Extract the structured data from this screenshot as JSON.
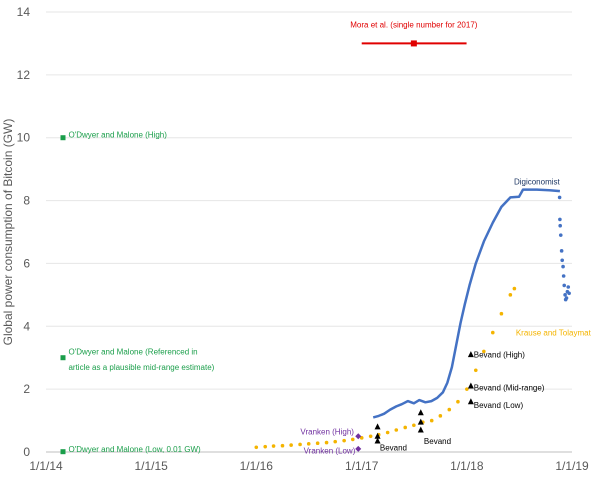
{
  "chart_data": {
    "type": "scatter",
    "ylabel": "Global power consumption of Bitcoin (GW)",
    "ylim": [
      0,
      14
    ],
    "yticks": [
      "0",
      "2",
      "4",
      "6",
      "8",
      "10",
      "12",
      "14"
    ],
    "xlim": [
      "2014-01-01",
      "2019-01-01"
    ],
    "xticks": [
      "1/1/14",
      "1/1/15",
      "1/1/16",
      "1/1/17",
      "1/1/18",
      "1/1/19"
    ],
    "series": [
      {
        "name": "Digiconomist",
        "color": "#4472c4",
        "style": "line",
        "points": [
          [
            "2017-02-10",
            1.1
          ],
          [
            "2017-03-01",
            1.15
          ],
          [
            "2017-03-20",
            1.22
          ],
          [
            "2017-04-10",
            1.35
          ],
          [
            "2017-05-01",
            1.45
          ],
          [
            "2017-05-20",
            1.52
          ],
          [
            "2017-06-10",
            1.62
          ],
          [
            "2017-07-01",
            1.55
          ],
          [
            "2017-07-20",
            1.65
          ],
          [
            "2017-08-10",
            1.58
          ],
          [
            "2017-08-31",
            1.62
          ],
          [
            "2017-09-20",
            1.72
          ],
          [
            "2017-10-10",
            1.9
          ],
          [
            "2017-10-25",
            2.2
          ],
          [
            "2017-11-10",
            2.7
          ],
          [
            "2017-11-25",
            3.4
          ],
          [
            "2017-12-10",
            4.1
          ],
          [
            "2017-12-25",
            4.7
          ],
          [
            "2018-01-10",
            5.3
          ],
          [
            "2018-02-01",
            6.0
          ],
          [
            "2018-03-01",
            6.7
          ],
          [
            "2018-04-01",
            7.3
          ],
          [
            "2018-05-01",
            7.8
          ],
          [
            "2018-06-01",
            8.1
          ],
          [
            "2018-07-01",
            8.12
          ],
          [
            "2018-07-15",
            8.35
          ],
          [
            "2018-09-01",
            8.35
          ],
          [
            "2018-10-15",
            8.33
          ],
          [
            "2018-11-20",
            8.3
          ]
        ]
      },
      {
        "name": "Digiconomist (scatter tail)",
        "color": "#4472c4",
        "style": "dots",
        "points": [
          [
            "2018-11-20",
            7.4
          ],
          [
            "2018-11-21",
            7.2
          ],
          [
            "2018-11-23",
            6.9
          ],
          [
            "2018-11-26",
            6.4
          ],
          [
            "2018-11-28",
            6.1
          ],
          [
            "2018-12-01",
            5.9
          ],
          [
            "2018-12-03",
            5.6
          ],
          [
            "2018-12-05",
            5.3
          ],
          [
            "2018-12-08",
            5.0
          ],
          [
            "2018-12-10",
            4.85
          ],
          [
            "2018-12-13",
            4.9
          ],
          [
            "2018-12-16",
            5.1
          ],
          [
            "2018-12-19",
            5.25
          ],
          [
            "2018-12-22",
            5.05
          ],
          [
            "2018-11-19",
            8.1
          ]
        ]
      },
      {
        "name": "Krause and Tolaymat",
        "color": "#f4b400",
        "style": "dots",
        "points": [
          [
            "2016-01-01",
            0.15
          ],
          [
            "2016-02-01",
            0.17
          ],
          [
            "2016-03-01",
            0.19
          ],
          [
            "2016-04-01",
            0.2
          ],
          [
            "2016-05-01",
            0.22
          ],
          [
            "2016-06-01",
            0.24
          ],
          [
            "2016-07-01",
            0.26
          ],
          [
            "2016-08-01",
            0.28
          ],
          [
            "2016-09-01",
            0.3
          ],
          [
            "2016-10-01",
            0.33
          ],
          [
            "2016-11-01",
            0.36
          ],
          [
            "2016-12-01",
            0.4
          ],
          [
            "2017-01-01",
            0.45
          ],
          [
            "2017-02-01",
            0.5
          ],
          [
            "2017-03-01",
            0.55
          ],
          [
            "2017-04-01",
            0.62
          ],
          [
            "2017-05-01",
            0.7
          ],
          [
            "2017-06-01",
            0.78
          ],
          [
            "2017-07-01",
            0.85
          ],
          [
            "2017-08-01",
            0.95
          ],
          [
            "2017-09-01",
            1.0
          ],
          [
            "2017-10-01",
            1.15
          ],
          [
            "2017-11-01",
            1.35
          ],
          [
            "2017-12-01",
            1.6
          ],
          [
            "2018-01-01",
            2.0
          ],
          [
            "2018-02-01",
            2.6
          ],
          [
            "2018-03-01",
            3.2
          ],
          [
            "2018-04-01",
            3.8
          ],
          [
            "2018-05-01",
            4.4
          ],
          [
            "2018-06-01",
            5.0
          ],
          [
            "2018-06-15",
            5.2
          ]
        ]
      },
      {
        "name": "Mora et al. (single number for 2017)",
        "color": "#e00000",
        "style": "errorbar",
        "points": [
          [
            "2017-07-01",
            13.0
          ]
        ],
        "xrange": [
          "2017-01-01",
          "2017-12-31"
        ]
      },
      {
        "name": "O'Dwyer and Malone",
        "color": "#1a9e4a",
        "style": "squares",
        "points": [
          [
            "2014-03-01",
            10.0
          ],
          [
            "2014-03-01",
            3.0
          ],
          [
            "2014-03-01",
            0.01
          ]
        ]
      },
      {
        "name": "Vranken",
        "color": "#7030a0",
        "style": "diamonds",
        "points": [
          [
            "2016-12-20",
            0.5
          ],
          [
            "2016-12-20",
            0.1
          ]
        ]
      },
      {
        "name": "Bevand",
        "color": "#000000",
        "style": "triangles",
        "points": [
          [
            "2017-02-25",
            0.35
          ],
          [
            "2017-02-25",
            0.5
          ],
          [
            "2017-02-25",
            0.8
          ],
          [
            "2017-07-25",
            0.7
          ],
          [
            "2017-07-25",
            0.95
          ],
          [
            "2017-07-25",
            1.25
          ],
          [
            "2018-01-15",
            1.6
          ],
          [
            "2018-01-15",
            2.1
          ],
          [
            "2018-01-15",
            3.1
          ]
        ]
      }
    ],
    "annotations": [
      {
        "text": "Mora et al. (single number for 2017)",
        "date": "2017-07-01",
        "y": 13.6,
        "color": "#e00000",
        "anchor": "middle"
      },
      {
        "text": "Digiconomist",
        "date": "2018-09-01",
        "y": 8.6,
        "color": "#1f3864",
        "anchor": "middle"
      },
      {
        "text": "Krause and Tolaymat",
        "date": "2018-06-20",
        "y": 3.8,
        "color": "#f4b400",
        "anchor": "start"
      },
      {
        "text": "O'Dwyer and Malone (High)",
        "date": "2014-03-20",
        "y": 10.1,
        "color": "#1a9e4a",
        "anchor": "start"
      },
      {
        "text": "O'Dwyer and Malone (Referenced in",
        "date": "2014-03-20",
        "y": 3.2,
        "color": "#1a9e4a",
        "anchor": "start"
      },
      {
        "text": "article as a plausible mid-range estimate)",
        "date": "2014-03-20",
        "y": 2.7,
        "color": "#1a9e4a",
        "anchor": "start"
      },
      {
        "text": "O'Dwyer and Malone (Low, 0.01 GW)",
        "date": "2014-03-20",
        "y": 0.1,
        "color": "#1a9e4a",
        "anchor": "start"
      },
      {
        "text": "Vranken (High)",
        "date": "2016-12-05",
        "y": 0.65,
        "color": "#7030a0",
        "anchor": "end"
      },
      {
        "text": "Vranken (Low)",
        "date": "2016-12-10",
        "y": 0.05,
        "color": "#7030a0",
        "anchor": "end"
      },
      {
        "text": "Bevand",
        "date": "2017-03-05",
        "y": 0.15,
        "color": "#000000",
        "anchor": "start"
      },
      {
        "text": "Bevand",
        "date": "2017-08-05",
        "y": 0.35,
        "color": "#000000",
        "anchor": "start"
      },
      {
        "text": "Bevand (High)",
        "date": "2018-01-25",
        "y": 3.1,
        "color": "#000000",
        "anchor": "start"
      },
      {
        "text": "Bevand (Mid-range)",
        "date": "2018-01-25",
        "y": 2.05,
        "color": "#000000",
        "anchor": "start"
      },
      {
        "text": "Bevand (Low)",
        "date": "2018-01-25",
        "y": 1.5,
        "color": "#000000",
        "anchor": "start"
      }
    ]
  }
}
